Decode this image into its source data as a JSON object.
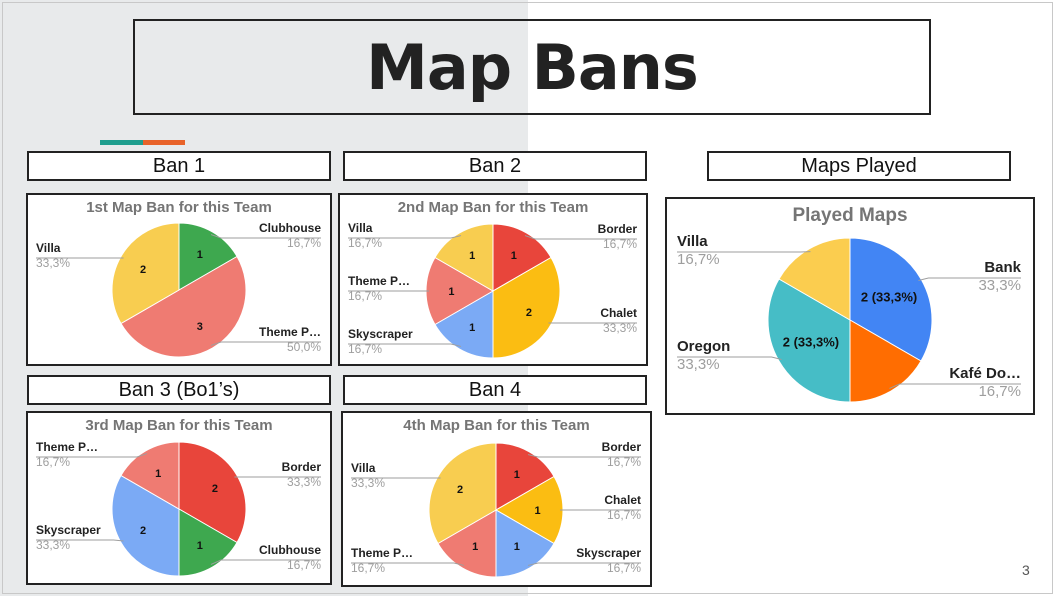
{
  "slide": {
    "title": "Map Bans",
    "page_number": "3",
    "accent_colors": [
      "#1f9e8e",
      "#e8632a"
    ]
  },
  "headers": {
    "ban1": "Ban 1",
    "ban2": "Ban 2",
    "ban3": "Ban 3 (Bo1’s)",
    "ban4": "Ban 4",
    "played": "Maps Played"
  },
  "chart_data": [
    {
      "id": "ban1",
      "type": "pie",
      "title": "1st Map Ban for this Team",
      "slices": [
        {
          "label": "Clubhouse",
          "value": 1,
          "percent": "16,7%",
          "color": "#3ea84f"
        },
        {
          "label": "Theme P…",
          "value": 3,
          "percent": "50,0%",
          "color": "#ef7b72"
        },
        {
          "label": "Villa",
          "value": 2,
          "percent": "33,3%",
          "color": "#f8cd50"
        }
      ],
      "slice_labels": [
        "1",
        "3",
        "2"
      ]
    },
    {
      "id": "ban2",
      "type": "pie",
      "title": "2nd Map Ban for this Team",
      "slices": [
        {
          "label": "Border",
          "value": 1,
          "percent": "16,7%",
          "color": "#e8453b"
        },
        {
          "label": "Chalet",
          "value": 2,
          "percent": "33,3%",
          "color": "#fbbd12"
        },
        {
          "label": "Skyscraper",
          "value": 1,
          "percent": "16,7%",
          "color": "#7baaf5"
        },
        {
          "label": "Theme P…",
          "value": 1,
          "percent": "16,7%",
          "color": "#ef7b72"
        },
        {
          "label": "Villa",
          "value": 1,
          "percent": "16,7%",
          "color": "#f8cd50"
        }
      ],
      "slice_labels": [
        "1",
        "2",
        "1",
        "1",
        "1"
      ]
    },
    {
      "id": "ban3",
      "type": "pie",
      "title": "3rd Map Ban for this Team",
      "slices": [
        {
          "label": "Border",
          "value": 2,
          "percent": "33,3%",
          "color": "#e8453b"
        },
        {
          "label": "Clubhouse",
          "value": 1,
          "percent": "16,7%",
          "color": "#3ea84f"
        },
        {
          "label": "Skyscraper",
          "value": 2,
          "percent": "33,3%",
          "color": "#7baaf5"
        },
        {
          "label": "Theme P…",
          "value": 1,
          "percent": "16,7%",
          "color": "#ef7b72"
        }
      ],
      "slice_labels": [
        "2",
        "1",
        "2",
        "1"
      ]
    },
    {
      "id": "ban4",
      "type": "pie",
      "title": "4th Map Ban for this Team",
      "slices": [
        {
          "label": "Border",
          "value": 1,
          "percent": "16,7%",
          "color": "#e8453b"
        },
        {
          "label": "Chalet",
          "value": 1,
          "percent": "16,7%",
          "color": "#fbbd12"
        },
        {
          "label": "Skyscraper",
          "value": 1,
          "percent": "16,7%",
          "color": "#7baaf5"
        },
        {
          "label": "Theme P…",
          "value": 1,
          "percent": "16,7%",
          "color": "#ef7b72"
        },
        {
          "label": "Villa",
          "value": 2,
          "percent": "33,3%",
          "color": "#f8cd50"
        }
      ],
      "slice_labels": [
        "1",
        "1",
        "1",
        "1",
        "2"
      ]
    },
    {
      "id": "played",
      "type": "pie",
      "title": "Played Maps",
      "slices": [
        {
          "label": "Bank",
          "value": 2,
          "percent": "33,3%",
          "color": "#4285f4"
        },
        {
          "label": "Kafé Do…",
          "value": 1,
          "percent": "16,7%",
          "color": "#ff6d01"
        },
        {
          "label": "Oregon",
          "value": 2,
          "percent": "33,3%",
          "color": "#46bdc6"
        },
        {
          "label": "Villa",
          "value": 1,
          "percent": "16,7%",
          "color": "#fbcd4f"
        }
      ],
      "slice_labels": [
        "2 (33,3%)",
        "",
        "2 (33,3%)",
        ""
      ]
    }
  ]
}
